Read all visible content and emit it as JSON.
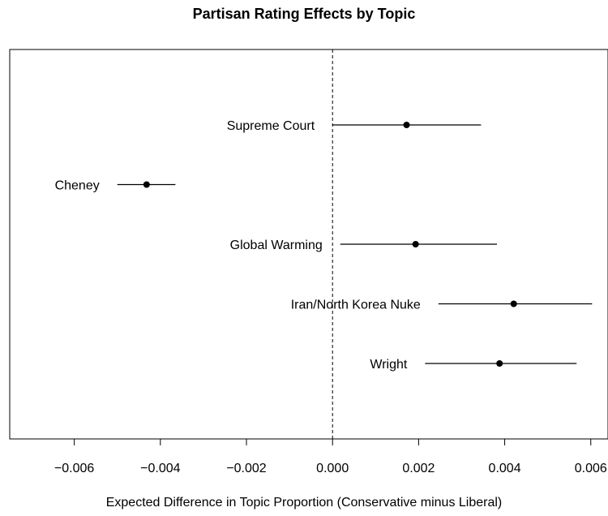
{
  "chart_data": {
    "type": "scatter",
    "subtype": "coefficient-plot-with-intervals",
    "title": "Partisan Rating Effects by Topic",
    "xlabel": "Expected Difference in Topic Proportion (Conservative minus Liberal)",
    "ylabel": "",
    "xlim": [
      -0.0075,
      0.0064
    ],
    "xticks": [
      -0.006,
      -0.004,
      -0.002,
      0.0,
      0.002,
      0.004,
      0.006
    ],
    "xtick_labels": [
      "−0.006",
      "−0.004",
      "−0.002",
      "0.000",
      "0.002",
      "0.004",
      "0.006"
    ],
    "reference_line": {
      "x": 0.0,
      "style": "dashed"
    },
    "grid": false,
    "points": [
      {
        "label": "Supreme Court",
        "estimate": 0.00172,
        "lower": 0.0,
        "upper": 0.00345
      },
      {
        "label": "Cheney",
        "estimate": -0.00432,
        "lower": -0.005,
        "upper": -0.00365
      },
      {
        "label": "Global Warming",
        "estimate": 0.00193,
        "lower": 0.00018,
        "upper": 0.00382
      },
      {
        "label": "Iran/North Korea Nuke",
        "estimate": 0.00421,
        "lower": 0.00246,
        "upper": 0.00603
      },
      {
        "label": "Wright",
        "estimate": 0.00388,
        "lower": 0.00215,
        "upper": 0.00567
      }
    ]
  }
}
